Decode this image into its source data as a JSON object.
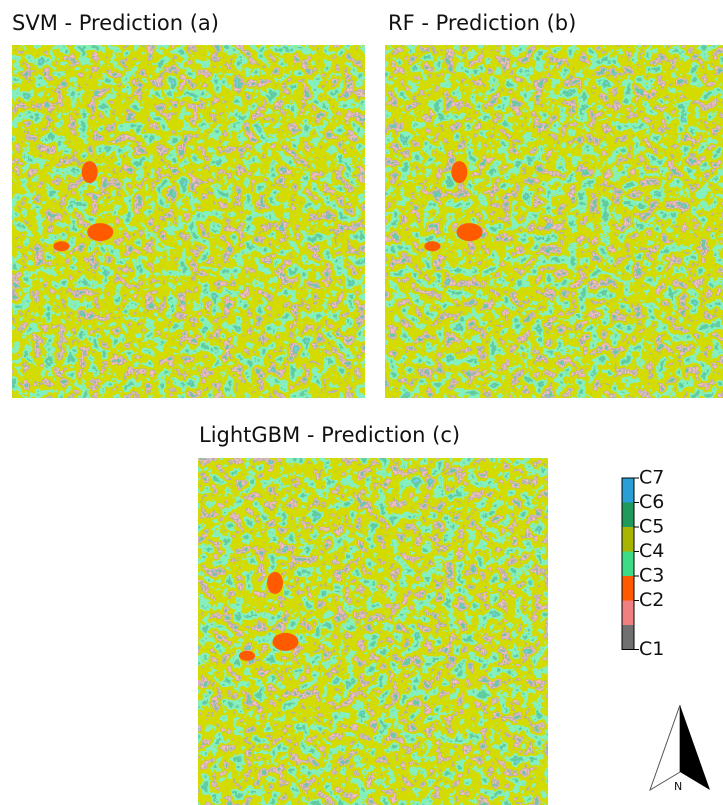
{
  "panels": [
    {
      "title": "SVM - Prediction (a)"
    },
    {
      "title": "RF - Prediction (b)"
    },
    {
      "title": "LightGBM - Prediction (c)"
    }
  ],
  "legend": {
    "items": [
      {
        "label": "C7",
        "color": "#2a9fd6"
      },
      {
        "label": "C6",
        "color": "#1f9a5a"
      },
      {
        "label": "C5",
        "color": "#a8b400"
      },
      {
        "label": "C4",
        "color": "#3ddc84"
      },
      {
        "label": "C3",
        "color": "#ff5a00"
      },
      {
        "label": "C2",
        "color": "#f08080"
      },
      {
        "label": "C1",
        "color": "#707070"
      }
    ]
  },
  "north_arrow": {
    "label": "N"
  }
}
